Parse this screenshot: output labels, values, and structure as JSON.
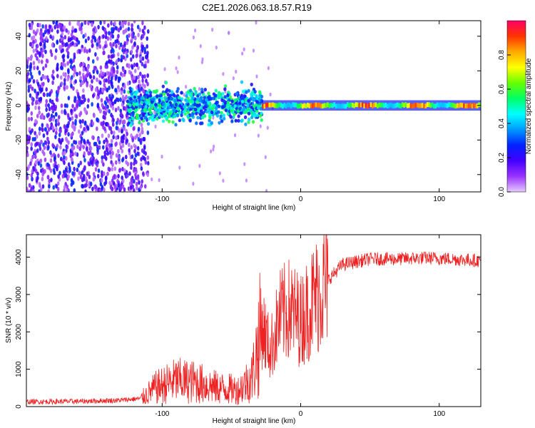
{
  "figure_title": "C2E1.2026.063.18.57.R19",
  "chart_data": [
    {
      "type": "heatmap",
      "title": "C2E1.2026.063.18.57.R19",
      "xlabel": "Height of straight line (km)",
      "ylabel": "Frequency (Hz)",
      "xlim": [
        -198,
        130
      ],
      "ylim": [
        -50,
        49
      ],
      "xticks": [
        -100,
        0,
        100
      ],
      "yticks": [
        -40,
        -20,
        0,
        20,
        40
      ],
      "colorbar": {
        "label": "Normalized spectral amplitude",
        "range": [
          0,
          1
        ],
        "ticks": [
          0.0,
          0.2,
          0.4,
          0.6,
          0.8
        ],
        "colormap": [
          "#e6ccff",
          "#9933ff",
          "#4400ff",
          "#0022ff",
          "#0099ff",
          "#00ffff",
          "#00ff66",
          "#66ff00",
          "#ffff00",
          "#ffaa00",
          "#ff3300",
          "#ff0066"
        ]
      },
      "regions": [
        {
          "x_range": [
            -198,
            -110
          ],
          "description": "broadband noise",
          "amplitude": [
            0.05,
            0.3
          ]
        },
        {
          "x_range": [
            -125,
            -28
          ],
          "freq_spread_hz": 12,
          "amplitude": [
            0.2,
            0.6
          ]
        },
        {
          "x_range": [
            -28,
            130
          ],
          "freq_center_hz": 0,
          "freq_spread_hz": 3,
          "amplitude": [
            0.4,
            1.0
          ]
        }
      ]
    },
    {
      "type": "line",
      "xlabel": "Height of straight line (km)",
      "ylabel": "SNR (10 * v/v)",
      "xlim": [
        -198,
        130
      ],
      "ylim": [
        0,
        4600
      ],
      "xticks": [
        -100,
        0,
        100
      ],
      "yticks": [
        0,
        1000,
        2000,
        3000,
        4000
      ],
      "series": [
        {
          "name": "SNR",
          "color": "#ee2222",
          "x": [
            -198,
            -160,
            -130,
            -115,
            -105,
            -90,
            -75,
            -60,
            -45,
            -35,
            -28,
            -22,
            -15,
            -8,
            0,
            10,
            20,
            30,
            50,
            70,
            90,
            110,
            130
          ],
          "values": [
            130,
            140,
            170,
            220,
            500,
            700,
            650,
            500,
            450,
            800,
            2200,
            1500,
            2400,
            2600,
            2300,
            2900,
            3400,
            3800,
            3950,
            3950,
            3980,
            3950,
            3900
          ]
        }
      ]
    }
  ]
}
